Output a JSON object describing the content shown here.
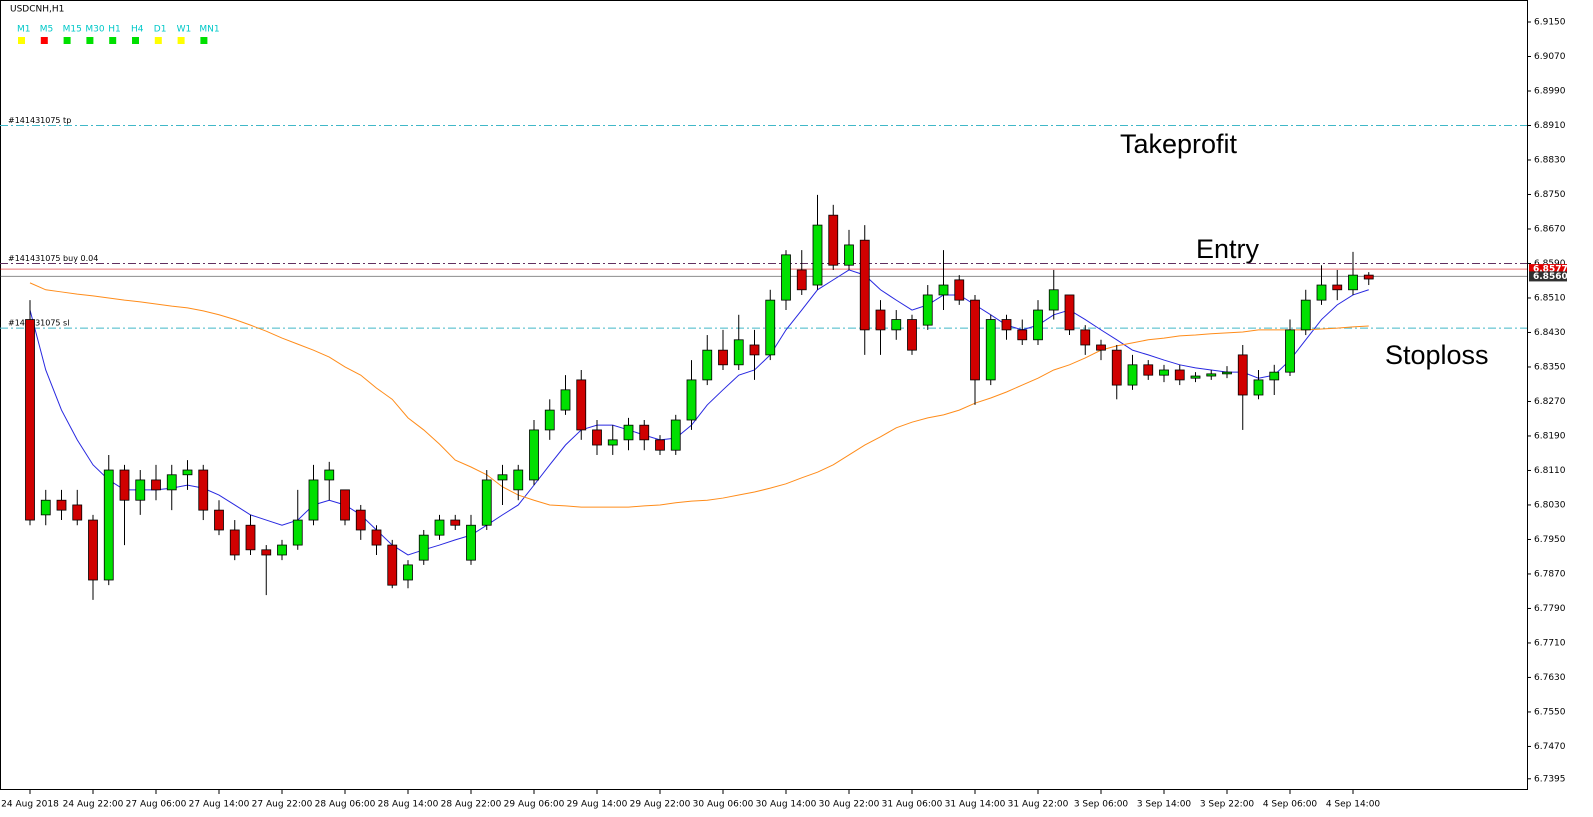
{
  "chart_data": {
    "type": "candlestick",
    "title": "USDCNH,H1",
    "timeframe_label_color": "#00c8c8",
    "timeframes": [
      {
        "label": "M1",
        "color": "#ffff00"
      },
      {
        "label": "M5",
        "color": "#ff0000"
      },
      {
        "label": "M15",
        "color": "#00e000"
      },
      {
        "label": "M30",
        "color": "#00e000"
      },
      {
        "label": "H1",
        "color": "#00e000"
      },
      {
        "label": "H4",
        "color": "#00e000"
      },
      {
        "label": "D1",
        "color": "#ffff00"
      },
      {
        "label": "W1",
        "color": "#ffff00"
      },
      {
        "label": "MN1",
        "color": "#00e000"
      }
    ],
    "annotations": [
      "Takeprofit",
      "Entry",
      "Stoploss"
    ],
    "levels": [
      {
        "label": "#141431075 tp",
        "value": 6.891,
        "color": "#40b8c8"
      },
      {
        "label": "#141431075 buy 0.04",
        "value": 6.859,
        "color": "#603060"
      },
      {
        "label": "#141431075 sl",
        "value": 6.844,
        "color": "#40b8c8"
      }
    ],
    "price_tags": [
      {
        "value": 6.8577,
        "label": "6.8577",
        "color": "#e00000"
      },
      {
        "value": 6.856,
        "label": "6.8560",
        "color": "#303030"
      }
    ],
    "up_color": "#00e000",
    "down_color": "#d00000",
    "ylim": [
      6.7369,
      6.9201
    ],
    "yticks": [
      {
        "value": 6.915,
        "label": "6.9150"
      },
      {
        "value": 6.907,
        "label": "6.9070"
      },
      {
        "value": 6.899,
        "label": "6.8990"
      },
      {
        "value": 6.891,
        "label": "6.8910"
      },
      {
        "value": 6.883,
        "label": "6.8830"
      },
      {
        "value": 6.875,
        "label": "6.8750"
      },
      {
        "value": 6.867,
        "label": "6.8670"
      },
      {
        "value": 6.859,
        "label": "6.8590"
      },
      {
        "value": 6.851,
        "label": "6.8510"
      },
      {
        "value": 6.843,
        "label": "6.8430"
      },
      {
        "value": 6.835,
        "label": "6.8350"
      },
      {
        "value": 6.827,
        "label": "6.8270"
      },
      {
        "value": 6.819,
        "label": "6.8190"
      },
      {
        "value": 6.811,
        "label": "6.8110"
      },
      {
        "value": 6.803,
        "label": "6.8030"
      },
      {
        "value": 6.795,
        "label": "6.7950"
      },
      {
        "value": 6.787,
        "label": "6.7870"
      },
      {
        "value": 6.779,
        "label": "6.7790"
      },
      {
        "value": 6.771,
        "label": "6.7710"
      },
      {
        "value": 6.763,
        "label": "6.7630"
      },
      {
        "value": 6.755,
        "label": "6.7550"
      },
      {
        "value": 6.747,
        "label": "6.7470"
      },
      {
        "value": 6.7395,
        "label": "6.7395"
      }
    ],
    "categories": [
      "24 Aug 2018",
      null,
      null,
      null,
      "24 Aug 22:00",
      null,
      null,
      null,
      "27 Aug 06:00",
      null,
      null,
      null,
      "27 Aug 14:00",
      null,
      null,
      null,
      "27 Aug 22:00",
      null,
      null,
      null,
      "28 Aug 06:00",
      null,
      null,
      null,
      "28 Aug 14:00",
      null,
      null,
      null,
      "28 Aug 22:00",
      null,
      null,
      null,
      "29 Aug 06:00",
      null,
      null,
      null,
      "29 Aug 14:00",
      null,
      null,
      null,
      "29 Aug 22:00",
      null,
      null,
      null,
      "30 Aug 06:00",
      null,
      null,
      null,
      "30 Aug 14:00",
      null,
      null,
      null,
      "30 Aug 22:00",
      null,
      null,
      null,
      "31 Aug 06:00",
      null,
      null,
      null,
      "31 Aug 14:00",
      null,
      null,
      null,
      "31 Aug 22:00",
      null,
      null,
      null,
      "3 Sep 06:00",
      null,
      null,
      null,
      "3 Sep 14:00",
      null,
      null,
      null,
      "3 Sep 22:00",
      null,
      null,
      null,
      "4 Sep 06:00",
      null,
      null,
      null,
      "4 Sep 14:00",
      null
    ],
    "open": [
      6.846,
      6.8007,
      6.8041,
      6.803,
      6.7995,
      6.7856,
      6.8111,
      6.8041,
      6.8088,
      6.8065,
      6.81,
      6.8111,
      6.8018,
      6.7972,
      6.7983,
      6.7926,
      6.7914,
      6.7937,
      6.7995,
      6.8088,
      6.8065,
      6.8018,
      6.7972,
      6.7937,
      6.7856,
      6.7902,
      6.796,
      6.7995,
      6.7902,
      6.7983,
      6.8088,
      6.8065,
      6.8088,
      6.8204,
      6.825,
      6.832,
      6.8204,
      6.8169,
      6.8181,
      6.8215,
      6.8181,
      6.8157,
      6.8227,
      6.832,
      6.8389,
      6.8355,
      6.8401,
      6.8378,
      6.8505,
      6.8575,
      6.854,
      6.8702,
      6.8586,
      6.8644,
      6.8482,
      6.8436,
      6.846,
      6.8447,
      6.8517,
      6.8552,
      6.8505,
      6.832,
      6.846,
      6.8436,
      6.8413,
      6.8482,
      6.8517,
      6.8436,
      6.8401,
      6.8389,
      6.8308,
      6.8355,
      6.8331,
      6.8343,
      6.8324,
      6.8329,
      6.8334,
      6.8378,
      6.8285,
      6.832,
      6.8338,
      6.8436,
      6.8505,
      6.854,
      6.8529,
      6.8563
    ],
    "high": [
      6.8505,
      6.8065,
      6.8065,
      6.8065,
      6.8007,
      6.8146,
      6.8123,
      6.8111,
      6.8123,
      6.8123,
      6.8134,
      6.8123,
      6.8041,
      6.7995,
      6.8007,
      6.7937,
      6.7949,
      6.8065,
      6.8123,
      6.813,
      6.8065,
      6.803,
      6.7983,
      6.7949,
      6.7902,
      6.7972,
      6.8007,
      6.8007,
      6.8007,
      6.8111,
      6.8123,
      6.8123,
      6.8227,
      6.8275,
      6.8331,
      6.8343,
      6.8227,
      6.8215,
      6.8232,
      6.8227,
      6.8192,
      6.8239,
      6.8366,
      6.8424,
      6.8436,
      6.8471,
      6.8436,
      6.8529,
      6.8621,
      6.8621,
      6.8749,
      6.8726,
      6.8668,
      6.8679,
      6.8505,
      6.8482,
      6.8471,
      6.854,
      6.8621,
      6.8563,
      6.8517,
      6.8471,
      6.8471,
      6.846,
      6.8505,
      6.8575,
      6.8517,
      6.8447,
      6.8413,
      6.8401,
      6.8378,
      6.8366,
      6.8355,
      6.8355,
      6.8338,
      6.8343,
      6.8352,
      6.8401,
      6.8343,
      6.8355,
      6.846,
      6.8529,
      6.8586,
      6.8575,
      6.8617,
      6.857
    ],
    "low": [
      6.7983,
      6.7983,
      6.7995,
      6.7983,
      6.781,
      6.7844,
      6.7937,
      6.8007,
      6.8041,
      6.8018,
      6.8065,
      6.7995,
      6.796,
      6.7902,
      6.7914,
      6.7821,
      6.7902,
      6.7926,
      6.7983,
      6.8041,
      6.7983,
      6.7949,
      6.7914,
      6.7837,
      6.7837,
      6.7891,
      6.7949,
      6.7972,
      6.7891,
      6.7972,
      6.803,
      6.8041,
      6.8076,
      6.8181,
      6.8239,
      6.8181,
      6.8146,
      6.8146,
      6.8157,
      6.8157,
      6.8146,
      6.8146,
      6.8204,
      6.8308,
      6.8343,
      6.8343,
      6.832,
      6.8366,
      6.8482,
      6.8517,
      6.8529,
      6.8575,
      6.8575,
      6.8378,
      6.8378,
      6.8413,
      6.8378,
      6.8436,
      6.8482,
      6.8494,
      6.8262,
      6.8308,
      6.8413,
      6.8401,
      6.8401,
      6.846,
      6.8424,
      6.8378,
      6.8366,
      6.8275,
      6.8297,
      6.832,
      6.8315,
      6.8308,
      6.8315,
      6.832,
      6.8324,
      6.8204,
      6.8275,
      6.8285,
      6.8329,
      6.8424,
      6.8494,
      6.8505,
      6.8517,
      6.854
    ],
    "close": [
      6.7995,
      6.8041,
      6.8018,
      6.7995,
      6.7856,
      6.8111,
      6.8041,
      6.8088,
      6.8065,
      6.81,
      6.8111,
      6.8018,
      6.7972,
      6.7914,
      6.7926,
      6.7914,
      6.7937,
      6.7995,
      6.8088,
      6.8111,
      6.7995,
      6.7972,
      6.7937,
      6.7844,
      6.7891,
      6.796,
      6.7995,
      6.7983,
      6.7983,
      6.8088,
      6.81,
      6.8111,
      6.8204,
      6.825,
      6.8297,
      6.8204,
      6.8169,
      6.8181,
      6.8215,
      6.8181,
      6.8157,
      6.8227,
      6.832,
      6.8389,
      6.8355,
      6.8413,
      6.8378,
      6.8505,
      6.861,
      6.8529,
      6.8679,
      6.8586,
      6.8633,
      6.8436,
      6.8436,
      6.846,
      6.8389,
      6.8517,
      6.854,
      6.8505,
      6.832,
      6.846,
      6.8436,
      6.8413,
      6.8482,
      6.8529,
      6.8436,
      6.8401,
      6.8389,
      6.8308,
      6.8355,
      6.8331,
      6.8343,
      6.832,
      6.8329,
      6.8334,
      6.8338,
      6.8285,
      6.832,
      6.8338,
      6.8436,
      6.8505,
      6.854,
      6.8529,
      6.8563,
      6.8554
    ],
    "series": [
      {
        "color": "#2828e0",
        "values": [
          6.8482,
          6.8343,
          6.825,
          6.8181,
          6.8123,
          6.8088,
          6.8065,
          6.8065,
          6.8065,
          6.8069,
          6.8076,
          6.8069,
          6.8053,
          6.803,
          6.8007,
          6.7995,
          6.7983,
          6.7995,
          6.803,
          6.8041,
          6.803,
          6.8007,
          6.7972,
          6.7937,
          6.7914,
          6.7926,
          6.7937,
          6.7949,
          6.796,
          6.7983,
          6.8007,
          6.803,
          6.8076,
          6.8123,
          6.8169,
          6.8204,
          6.8215,
          6.8215,
          6.8204,
          6.8192,
          6.8181,
          6.8185,
          6.8215,
          6.8262,
          6.8297,
          6.8331,
          6.8343,
          6.8378,
          6.8436,
          6.8482,
          6.8529,
          6.8552,
          6.8575,
          6.8563,
          6.8529,
          6.8505,
          6.8482,
          6.8494,
          6.8517,
          6.8517,
          6.8494,
          6.8471,
          6.8447,
          6.8436,
          6.8447,
          6.8471,
          6.8482,
          6.846,
          6.8436,
          6.8413,
          6.8389,
          6.8378,
          6.8366,
          6.8355,
          6.8348,
          6.8343,
          6.8338,
          6.8338,
          6.8324,
          6.8331,
          6.8366,
          6.8413,
          6.846,
          6.8494,
          6.8517,
          6.8529
        ]
      },
      {
        "color": "#ff8c1a",
        "values": [
          6.8545,
          6.8529,
          6.8524,
          6.8519,
          6.8515,
          6.851,
          6.8505,
          6.8501,
          6.8496,
          6.8491,
          6.8487,
          6.848,
          6.8471,
          6.846,
          6.8447,
          6.8433,
          6.8417,
          6.8403,
          6.8389,
          6.8373,
          6.835,
          6.8331,
          6.8301,
          6.8275,
          6.8232,
          6.8204,
          6.8171,
          6.8134,
          6.8118,
          6.81,
          6.8072,
          6.8053,
          6.8041,
          6.803,
          6.8028,
          6.8025,
          6.8025,
          6.8025,
          6.8025,
          6.8028,
          6.803,
          6.8035,
          6.8039,
          6.8041,
          6.8046,
          6.8053,
          6.806,
          6.8069,
          6.8079,
          6.8093,
          6.8106,
          6.8123,
          6.8146,
          6.8169,
          6.8188,
          6.8209,
          6.8222,
          6.8232,
          6.8239,
          6.825,
          6.8266,
          6.8278,
          6.8292,
          6.8308,
          6.8324,
          6.8343,
          6.8355,
          6.8371,
          6.8389,
          6.8399,
          6.8406,
          6.8413,
          6.8417,
          6.8422,
          6.8424,
          6.8427,
          6.8429,
          6.8431,
          6.8436,
          6.8436,
          6.8436,
          6.8436,
          6.8438,
          6.844,
          6.8443,
          6.8445
        ]
      }
    ]
  }
}
